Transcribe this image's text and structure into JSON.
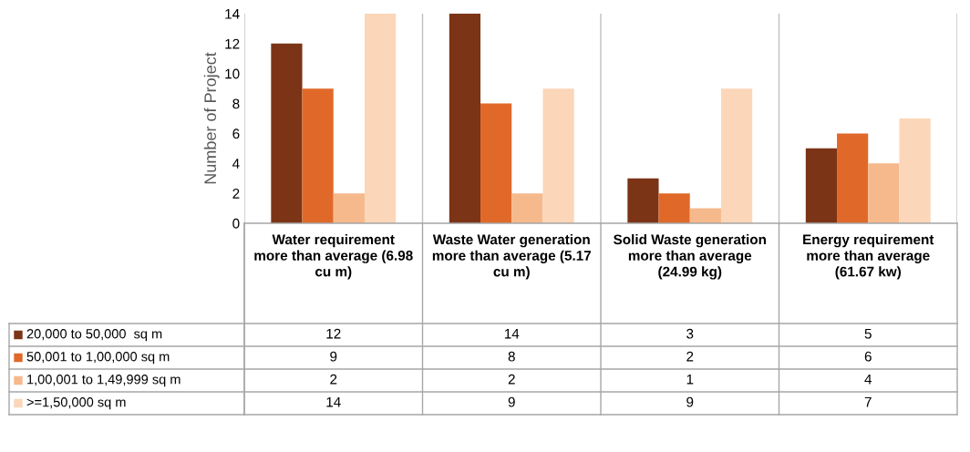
{
  "chart_data": {
    "type": "bar",
    "ylabel": "Number of Project",
    "categories": [
      "Water requirement more than average (6.98 cu m)",
      "Waste Water generation more than average (5.17 cu m)",
      "Solid Waste generation more than average (24.99 kg)",
      "Energy requirement more than average (61.67 kw)"
    ],
    "series": [
      {
        "name": "20,000 to 50,000  sq m",
        "color": "#7b3416",
        "values": [
          12,
          14,
          3,
          5
        ]
      },
      {
        "name": "50,001 to 1,00,000 sq m",
        "color": "#e0692a",
        "values": [
          9,
          8,
          2,
          6
        ]
      },
      {
        "name": "1,00,001 to 1,49,999 sq m",
        "color": "#f6b98c",
        "values": [
          2,
          2,
          1,
          4
        ]
      },
      {
        "name": ">=1,50,000 sq m",
        "color": "#fbd6b8",
        "values": [
          14,
          9,
          9,
          7
        ]
      }
    ],
    "ylim": [
      0,
      14
    ],
    "yticks": [
      0,
      2,
      4,
      6,
      8,
      10,
      12,
      14
    ],
    "grid": "x",
    "data_labels": true,
    "legend": "bottom"
  }
}
